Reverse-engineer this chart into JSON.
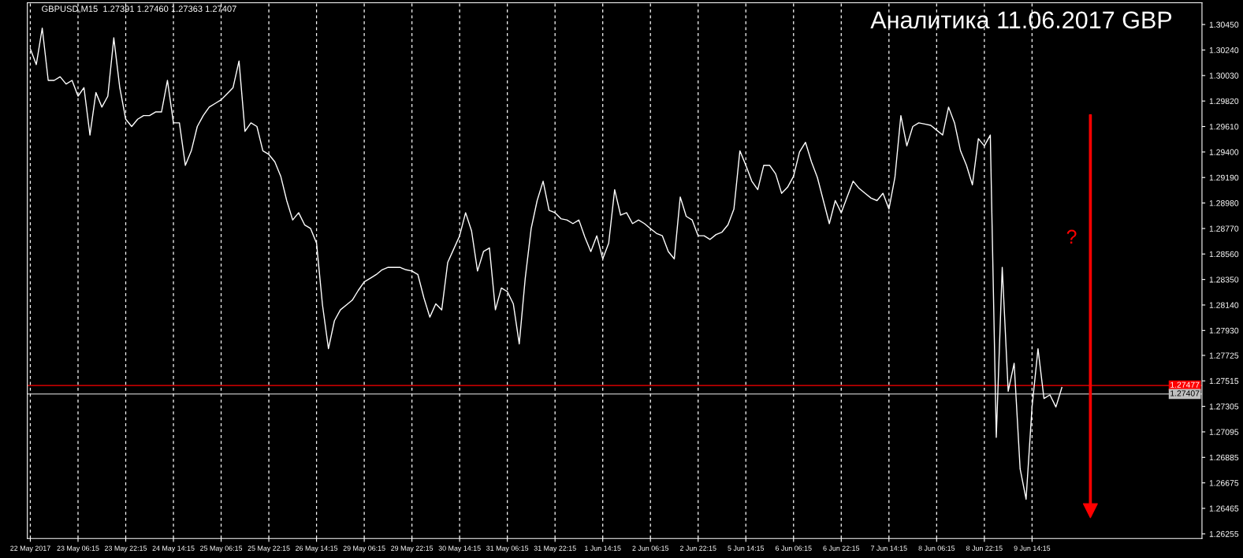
{
  "chart_data": {
    "type": "line",
    "title": "Аналитика 11.06.2017 GBP",
    "annotations": [
      "GBPUSD,M15  1.27391 1.27460 1.27363 1.27407",
      "?"
    ],
    "categories": [
      "22 May 2017",
      null,
      null,
      null,
      null,
      null,
      null,
      null,
      "23 May 06:15",
      null,
      null,
      null,
      null,
      null,
      null,
      null,
      "23 May 22:15",
      null,
      null,
      null,
      null,
      null,
      null,
      null,
      "24 May 14:15",
      null,
      null,
      null,
      null,
      null,
      null,
      null,
      "25 May 06:15",
      null,
      null,
      null,
      null,
      null,
      null,
      null,
      "25 May 22:15",
      null,
      null,
      null,
      null,
      null,
      null,
      null,
      "26 May 14:15",
      null,
      null,
      null,
      null,
      null,
      null,
      null,
      "29 May 06:15",
      null,
      null,
      null,
      null,
      null,
      null,
      null,
      "29 May 22:15",
      null,
      null,
      null,
      null,
      null,
      null,
      null,
      "30 May 14:15",
      null,
      null,
      null,
      null,
      null,
      null,
      null,
      "31 May 06:15",
      null,
      null,
      null,
      null,
      null,
      null,
      null,
      "31 May 22:15",
      null,
      null,
      null,
      null,
      null,
      null,
      null,
      "1 Jun 14:15",
      null,
      null,
      null,
      null,
      null,
      null,
      null,
      "2 Jun 06:15",
      null,
      null,
      null,
      null,
      null,
      null,
      null,
      "2 Jun 22:15",
      null,
      null,
      null,
      null,
      null,
      null,
      null,
      "5 Jun 14:15",
      null,
      null,
      null,
      null,
      null,
      null,
      null,
      "6 Jun 06:15",
      null,
      null,
      null,
      null,
      null,
      null,
      null,
      "6 Jun 22:15",
      null,
      null,
      null,
      null,
      null,
      null,
      null,
      "7 Jun 14:15",
      null,
      null,
      null,
      null,
      null,
      null,
      null,
      "8 Jun 06:15",
      null,
      null,
      null,
      null,
      null,
      null,
      null,
      "8 Jun 22:15",
      null,
      null,
      null,
      null,
      null,
      null,
      null,
      "9 Jun 14:15",
      null,
      null,
      null,
      null,
      null,
      null,
      null,
      null,
      null,
      null,
      null,
      null,
      null,
      null,
      null,
      null,
      null,
      null,
      null,
      null,
      null,
      null,
      null,
      null,
      null,
      null,
      null,
      null
    ],
    "series": [
      {
        "color": "#ffffff",
        "values": [
          1.3025,
          1.3012,
          1.3042,
          1.2999,
          1.2999,
          1.3002,
          1.2996,
          1.2999,
          1.2986,
          1.2993,
          1.2954,
          1.2989,
          1.2977,
          1.2986,
          1.3034,
          1.2993,
          1.2967,
          1.2961,
          1.2967,
          1.297,
          1.297,
          1.2973,
          1.2973,
          1.2999,
          1.2964,
          1.2964,
          1.2929,
          1.2941,
          1.2961,
          1.297,
          1.2977,
          1.298,
          1.2983,
          1.2988,
          1.2993,
          1.3015,
          1.2957,
          1.2964,
          1.2961,
          1.2941,
          1.2938,
          1.2932,
          1.292,
          1.29,
          1.2884,
          1.289,
          1.288,
          1.2877,
          1.2865,
          1.2814,
          1.2778,
          1.2801,
          1.281,
          1.2814,
          1.2818,
          1.2826,
          1.2833,
          1.2836,
          1.2839,
          1.2843,
          1.2845,
          1.2845,
          1.2845,
          1.2843,
          1.2842,
          1.2839,
          1.282,
          1.2804,
          1.2815,
          1.281,
          1.2849,
          1.286,
          1.2871,
          1.289,
          1.2875,
          1.2842,
          1.2858,
          1.2861,
          1.281,
          1.2828,
          1.2825,
          1.2815,
          1.2782,
          1.2836,
          1.2877,
          1.29,
          1.2916,
          1.2892,
          1.289,
          1.2885,
          1.2884,
          1.2881,
          1.2884,
          1.287,
          1.2858,
          1.2871,
          1.2852,
          1.2865,
          1.2909,
          1.2888,
          1.289,
          1.2881,
          1.2884,
          1.2881,
          1.2877,
          1.2873,
          1.2871,
          1.2858,
          1.2852,
          1.2903,
          1.2887,
          1.2884,
          1.2871,
          1.2871,
          1.2868,
          1.2872,
          1.2874,
          1.288,
          1.2893,
          1.2941,
          1.2929,
          1.2916,
          1.2909,
          1.2929,
          1.2929,
          1.2922,
          1.2906,
          1.2911,
          1.292,
          1.294,
          1.2948,
          1.2932,
          1.2919,
          1.29,
          1.2881,
          1.29,
          1.289,
          1.2903,
          1.2916,
          1.291,
          1.2906,
          1.2902,
          1.29,
          1.2906,
          1.2893,
          1.2919,
          1.297,
          1.2945,
          1.2961,
          1.2964,
          1.2963,
          1.2962,
          1.2958,
          1.2954,
          1.2977,
          1.2964,
          1.2941,
          1.2929,
          1.2913,
          1.2951,
          1.2945,
          1.2954,
          1.2705,
          1.2845,
          1.2743,
          1.2766,
          1.2679,
          1.2654,
          1.273,
          1.2778,
          1.2737,
          1.274,
          1.273,
          1.2746,
          null,
          null,
          null,
          null,
          null,
          null,
          null,
          null,
          null,
          null,
          null,
          null,
          null,
          null,
          null,
          null,
          null,
          null,
          null,
          null,
          null,
          null,
          null
        ]
      }
    ],
    "ylim": [
      1.26217,
      1.30629
    ],
    "yticks": [
      {
        "value": 1.26255,
        "label": "1.26255"
      },
      {
        "value": 1.26465,
        "label": "1.26465"
      },
      {
        "value": 1.26675,
        "label": "1.26675"
      },
      {
        "value": 1.26885,
        "label": "1.26885"
      },
      {
        "value": 1.27095,
        "label": "1.27095"
      },
      {
        "value": 1.27305,
        "label": "1.27305"
      },
      {
        "value": 1.27515,
        "label": "1.27515"
      },
      {
        "value": 1.27725,
        "label": "1.27725"
      },
      {
        "value": 1.2793,
        "label": "1.27930"
      },
      {
        "value": 1.2814,
        "label": "1.28140"
      },
      {
        "value": 1.2835,
        "label": "1.28350"
      },
      {
        "value": 1.2856,
        "label": "1.28560"
      },
      {
        "value": 1.2877,
        "label": "1.28770"
      },
      {
        "value": 1.2898,
        "label": "1.28980"
      },
      {
        "value": 1.2919,
        "label": "1.29190"
      },
      {
        "value": 1.294,
        "label": "1.29400"
      },
      {
        "value": 1.2961,
        "label": "1.29610"
      },
      {
        "value": 1.2982,
        "label": "1.29820"
      },
      {
        "value": 1.3003,
        "label": "1.30030"
      },
      {
        "value": 1.3024,
        "label": "1.30240"
      },
      {
        "value": 1.3045,
        "label": "1.30450"
      }
    ],
    "ref_lines": [
      {
        "axis": "y",
        "value": 1.27477,
        "label": "1.27477",
        "color": "#ff0000"
      },
      {
        "axis": "y",
        "value": 1.27407,
        "label": "1.27407",
        "color": "#c0c0c0"
      }
    ],
    "grid": "x",
    "legend": false
  }
}
